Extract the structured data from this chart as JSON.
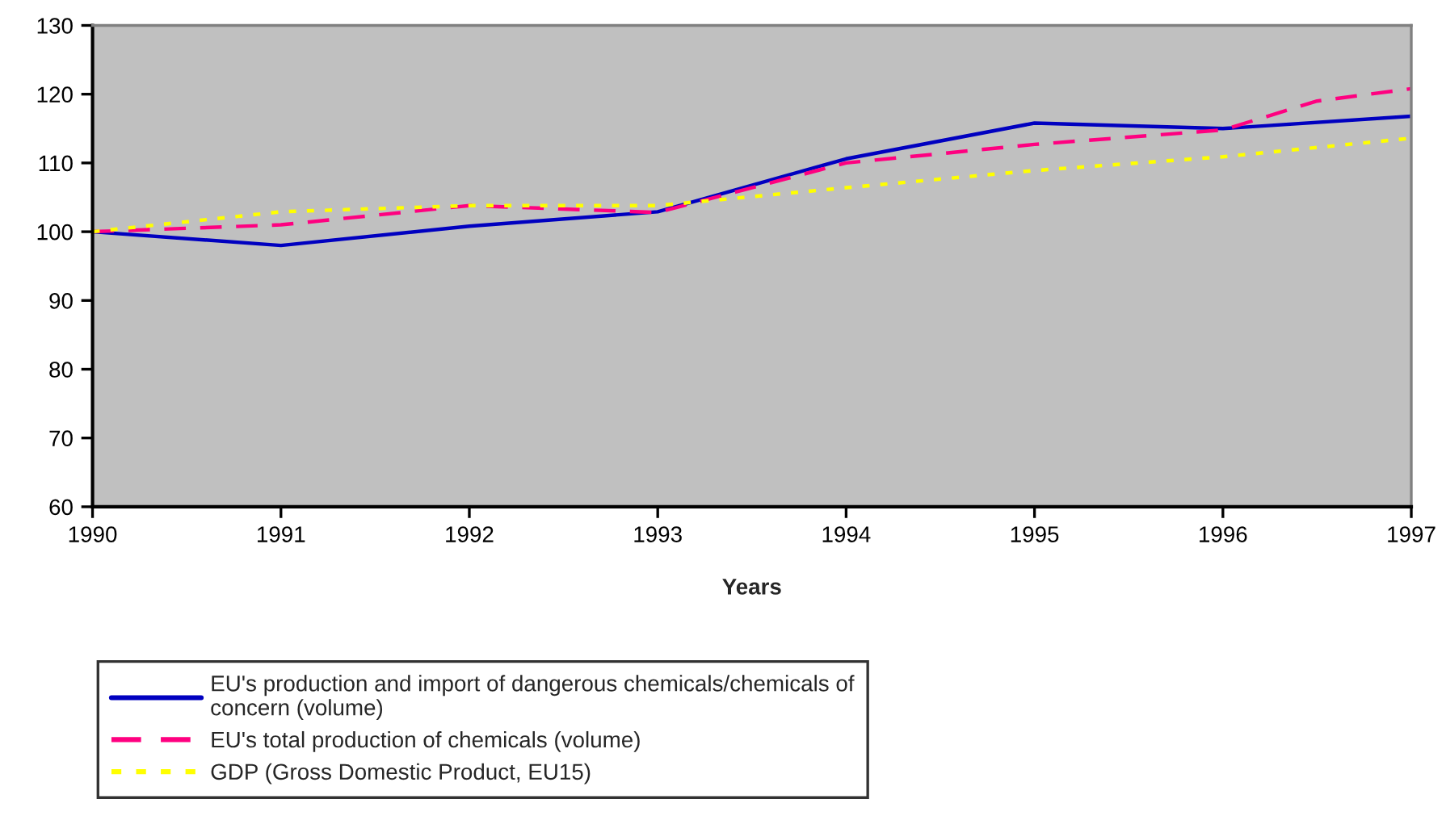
{
  "chart_data": {
    "type": "line",
    "xlabel": "Years",
    "xlim": [
      1990,
      1997
    ],
    "xticks": [
      1990,
      1991,
      1992,
      1993,
      1994,
      1995,
      1996,
      1997
    ],
    "ylim": [
      60,
      130
    ],
    "yticks": [
      60,
      70,
      80,
      90,
      100,
      110,
      120,
      130
    ],
    "grid": false,
    "legend": "bottom",
    "marker": "none",
    "series": [
      {
        "name": "EU's production and import of dangerous chemicals/chemicals of\nconcern (volume)",
        "color": "#0000c0",
        "line_style": "solid",
        "x": [
          1990,
          1991,
          1992,
          1993,
          1994,
          1995,
          1996,
          1997
        ],
        "values": [
          100,
          98,
          100.8,
          102.9,
          110.6,
          115.8,
          115,
          116.8
        ]
      },
      {
        "name": "EU's total production of chemicals (volume)",
        "color": "#ff0080",
        "line_style": "dashed",
        "x": [
          1990,
          1991,
          1992,
          1993,
          1994,
          1995,
          1996,
          1996.5,
          1997
        ],
        "values": [
          100,
          101,
          103.8,
          102.8,
          110,
          112.7,
          114.8,
          119,
          120.8
        ]
      },
      {
        "name": "GDP (Gross Domestic Product, EU15)",
        "color": "#ffff00",
        "line_style": "dotted",
        "x": [
          1990,
          1991,
          1992,
          1993,
          1994,
          1995,
          1996,
          1997
        ],
        "values": [
          100,
          102.9,
          103.8,
          103.8,
          106.4,
          108.9,
          110.9,
          113.6
        ]
      }
    ]
  }
}
